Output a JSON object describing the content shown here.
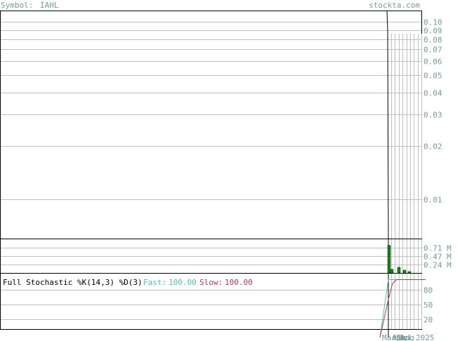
{
  "header": {
    "symbol_label": "Symbol:",
    "symbol": "IAHL",
    "site": "stockta.com"
  },
  "colors": {
    "frame": "#000000",
    "grid": "#c0c0c0",
    "axis_text": "#7a9a9a",
    "header_text": "#7a9a9a",
    "price_line": "#000000",
    "volume_bar": "#1f7a1f",
    "fast_line": "#5fb4b4",
    "slow_line": "#a04050"
  },
  "chart_data": [
    {
      "type": "line",
      "name": "price",
      "scale": "log",
      "ylim": [
        0.006,
        0.115
      ],
      "yticks": [
        "0.10",
        "0.09",
        "0.08",
        "0.07",
        "0.06",
        "0.05",
        "0.04",
        "0.03",
        "0.02",
        "0.01"
      ],
      "ytick_values": [
        0.1,
        0.09,
        0.08,
        0.07,
        0.06,
        0.05,
        0.04,
        0.03,
        0.02,
        0.01
      ],
      "values": [
        0.115,
        0.09,
        0.006
      ]
    },
    {
      "type": "bar",
      "name": "volume",
      "yticks": [
        "0.71 M",
        "0.47 M",
        "0.24 M"
      ],
      "ytick_values": [
        0.71,
        0.47,
        0.24
      ],
      "ylim": [
        0,
        0.95
      ],
      "values": [
        0.78,
        0.1,
        0.16,
        0.08,
        0.04
      ]
    },
    {
      "type": "line",
      "title": "Full Stochastic %K(14,3) %D(3)",
      "fast_label": "Fast:",
      "fast_value": "100.00",
      "slow_label": "Slow:",
      "slow_value": "100.00",
      "ylim": [
        0,
        112
      ],
      "yticks": [
        "80",
        "50",
        "20"
      ],
      "ytick_values": [
        80,
        50,
        20
      ],
      "fast": [
        0,
        100,
        100,
        100,
        100,
        100,
        100,
        100,
        100,
        100,
        100
      ],
      "slow": [
        0,
        60,
        92,
        100,
        100,
        100,
        100,
        100,
        100,
        100,
        100
      ]
    }
  ],
  "xaxis": {
    "labels": [
      "Mar",
      "Apr",
      "May",
      "Jun",
      "Jul",
      "Aug",
      "2025"
    ]
  }
}
